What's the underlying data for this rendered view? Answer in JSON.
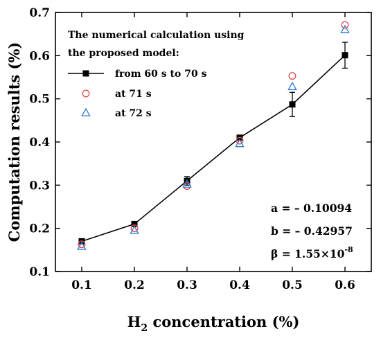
{
  "chart_data": {
    "type": "scatter",
    "xlabel": {
      "base": "H",
      "sub": "2",
      "rest": " concentration (%)"
    },
    "ylabel": "Computation results (%)",
    "xlim": [
      0.05,
      0.65
    ],
    "ylim": [
      0.1,
      0.7
    ],
    "xticks": [
      "0.1",
      "0.2",
      "0.3",
      "0.4",
      "0.5",
      "0.6"
    ],
    "yticks": [
      "0.1",
      "0.2",
      "0.3",
      "0.4",
      "0.5",
      "0.6",
      "0.7"
    ],
    "grid": false,
    "legend": {
      "position": "top-left",
      "title_lines": [
        "The numerical calculation using",
        "the proposed model:"
      ]
    },
    "series": [
      {
        "name": "from 60 s to 70 s",
        "marker": "filled-square",
        "color": "#000000",
        "line": true,
        "x": [
          0.1,
          0.2,
          0.3,
          0.4,
          0.5,
          0.6
        ],
        "y": [
          0.17,
          0.21,
          0.31,
          0.41,
          0.487,
          0.601
        ],
        "error": [
          0.005,
          0.005,
          0.01,
          0.005,
          0.028,
          0.03
        ]
      },
      {
        "name": "at 71 s",
        "marker": "open-circle",
        "color": "#e05050",
        "line": false,
        "x": [
          0.1,
          0.2,
          0.3,
          0.4,
          0.5,
          0.6
        ],
        "y": [
          0.163,
          0.2,
          0.298,
          0.403,
          0.553,
          0.671
        ]
      },
      {
        "name": "at 72 s",
        "marker": "open-triangle",
        "color": "#3a7fd0",
        "line": false,
        "x": [
          0.1,
          0.2,
          0.3,
          0.4,
          0.5,
          0.6
        ],
        "y": [
          0.158,
          0.195,
          0.302,
          0.396,
          0.528,
          0.66
        ]
      }
    ],
    "annotations": {
      "a": "a = – 0.10094",
      "b": "b = – 0.42957",
      "beta_base": "β = 1.55×10",
      "beta_exp": "-8"
    }
  }
}
